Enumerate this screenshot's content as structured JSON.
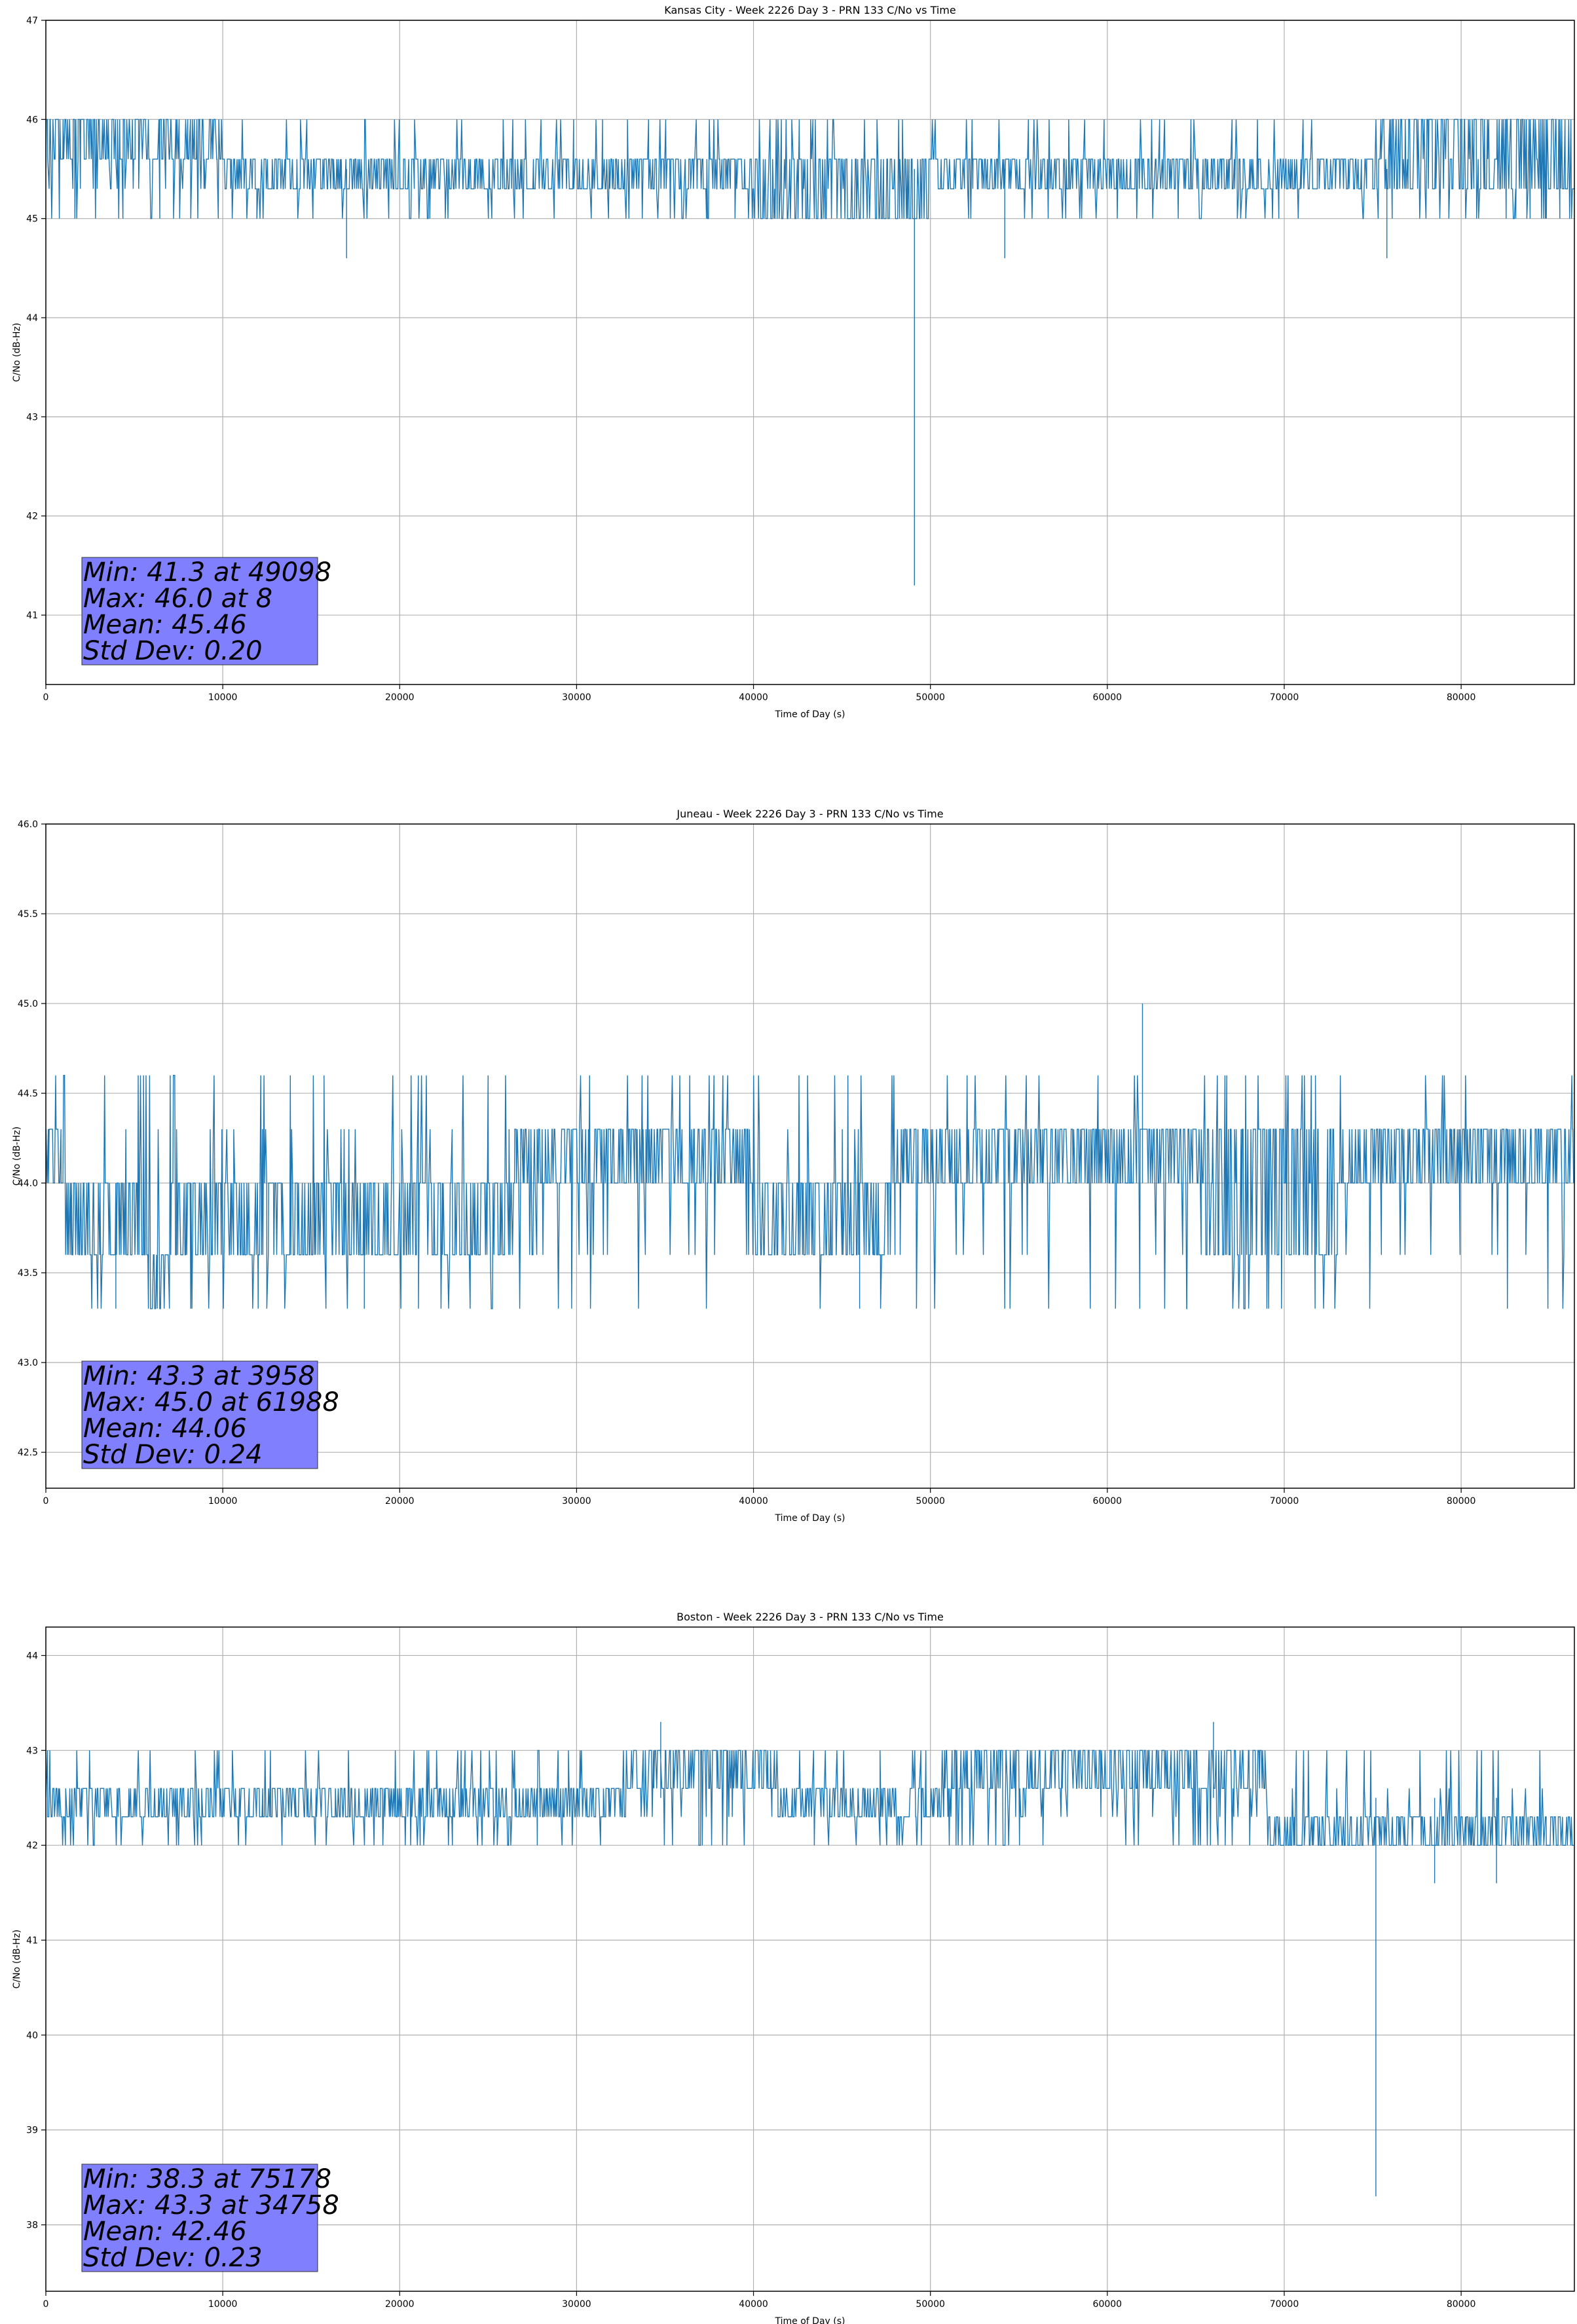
{
  "chart_data": [
    {
      "type": "line",
      "title": "Kansas City - Week 2226 Day 3 - PRN 133 C/No vs Time",
      "xlabel": "Time of Day (s)",
      "ylabel": "C/No (dB-Hz)",
      "xlim": [
        0,
        86400
      ],
      "ylim": [
        40.3,
        47.0
      ],
      "xticks": [
        0,
        10000,
        20000,
        30000,
        40000,
        50000,
        60000,
        70000,
        80000
      ],
      "yticks": [
        41,
        42,
        43,
        44,
        45,
        46,
        47
      ],
      "ytick_labels": [
        "41",
        "42",
        "43",
        "44",
        "45",
        "46",
        "47"
      ],
      "grid": true,
      "color": "#1f77b4",
      "base": 45.5,
      "band": [
        45.3,
        45.6
      ],
      "levels": [
        45.0,
        45.3,
        45.6,
        46.0
      ],
      "segments": [
        {
          "x": [
            0,
            10000
          ],
          "lo": 45.6,
          "hi": 46.0,
          "dense": 0.7
        },
        {
          "x": [
            10000,
            40000
          ],
          "lo": 45.3,
          "hi": 45.6,
          "dense": 0.8
        },
        {
          "x": [
            40000,
            50000
          ],
          "lo": 45.0,
          "hi": 45.6,
          "dense": 0.6
        },
        {
          "x": [
            50000,
            75000
          ],
          "lo": 45.3,
          "hi": 45.6,
          "dense": 0.8
        },
        {
          "x": [
            75000,
            86400
          ],
          "lo": 45.3,
          "hi": 46.0,
          "dense": 0.6
        }
      ],
      "spikes": [
        {
          "x": 17000,
          "y": 44.6
        },
        {
          "x": 49098,
          "y": 41.3
        },
        {
          "x": 54200,
          "y": 44.6
        },
        {
          "x": 75800,
          "y": 44.6
        }
      ],
      "stats": {
        "min": "Min: 41.3 at 49098",
        "max": "Max: 46.0 at 8",
        "mean": "Mean: 45.46",
        "std": "Std Dev: 0.20"
      }
    },
    {
      "type": "line",
      "title": "Juneau - Week 2226 Day 3 - PRN 133 C/No vs Time",
      "xlabel": "Time of Day (s)",
      "ylabel": "C/No (dB-Hz)",
      "xlim": [
        0,
        86400
      ],
      "ylim": [
        42.3,
        46.0
      ],
      "xticks": [
        0,
        10000,
        20000,
        30000,
        40000,
        50000,
        60000,
        70000,
        80000
      ],
      "yticks": [
        42.5,
        43.0,
        43.5,
        44.0,
        44.5,
        45.0,
        45.5,
        46.0
      ],
      "ytick_labels": [
        "42.5",
        "43.0",
        "43.5",
        "44.0",
        "44.5",
        "45.0",
        "45.5",
        "46.0"
      ],
      "grid": true,
      "color": "#1f77b4",
      "base": 44.0,
      "levels": [
        43.3,
        43.6,
        44.0,
        44.3,
        44.6
      ],
      "segments": [
        {
          "x": [
            0,
            1000
          ],
          "lo": 44.0,
          "hi": 44.3,
          "dense": 0.9
        },
        {
          "x": [
            1000,
            5500
          ],
          "lo": 43.6,
          "hi": 44.0,
          "dense": 0.8
        },
        {
          "x": [
            5500,
            7000
          ],
          "lo": 43.3,
          "hi": 43.6,
          "dense": 0.9
        },
        {
          "x": [
            7000,
            26500
          ],
          "lo": 43.6,
          "hi": 44.0,
          "dense": 0.8
        },
        {
          "x": [
            26500,
            40000
          ],
          "lo": 44.0,
          "hi": 44.3,
          "dense": 0.8
        },
        {
          "x": [
            40000,
            48000
          ],
          "lo": 43.6,
          "hi": 44.0,
          "dense": 0.85
        },
        {
          "x": [
            48000,
            65500
          ],
          "lo": 44.0,
          "hi": 44.3,
          "dense": 0.85
        },
        {
          "x": [
            65500,
            73000
          ],
          "lo": 43.6,
          "hi": 44.3,
          "dense": 0.6
        },
        {
          "x": [
            73000,
            86400
          ],
          "lo": 44.0,
          "hi": 44.3,
          "dense": 0.85
        }
      ],
      "spikes": [
        {
          "x": 3958,
          "y": 43.3
        },
        {
          "x": 18000,
          "y": 43.3
        },
        {
          "x": 46000,
          "y": 43.3
        },
        {
          "x": 61988,
          "y": 45.0
        }
      ],
      "stats": {
        "min": "Min: 43.3 at 3958",
        "max": "Max: 45.0 at 61988",
        "mean": "Mean: 44.06",
        "std": "Std Dev: 0.24"
      }
    },
    {
      "type": "line",
      "title": "Boston - Week 2226 Day 3 - PRN 133 C/No vs Time",
      "xlabel": "Time of Day (s)",
      "ylabel": "C/No (dB-Hz)",
      "xlim": [
        0,
        86400
      ],
      "ylim": [
        37.3,
        44.3
      ],
      "xticks": [
        0,
        10000,
        20000,
        30000,
        40000,
        50000,
        60000,
        70000,
        80000
      ],
      "yticks": [
        38,
        39,
        40,
        41,
        42,
        43,
        44
      ],
      "ytick_labels": [
        "38",
        "39",
        "40",
        "41",
        "42",
        "43",
        "44"
      ],
      "grid": true,
      "color": "#1f77b4",
      "base": 42.5,
      "levels": [
        42.0,
        42.3,
        42.6,
        43.0
      ],
      "segments": [
        {
          "x": [
            0,
            33000
          ],
          "lo": 42.3,
          "hi": 42.6,
          "dense": 0.8
        },
        {
          "x": [
            33000,
            41000
          ],
          "lo": 42.6,
          "hi": 43.0,
          "dense": 0.8
        },
        {
          "x": [
            41000,
            51000
          ],
          "lo": 42.3,
          "hi": 42.6,
          "dense": 0.8
        },
        {
          "x": [
            51000,
            69000
          ],
          "lo": 42.6,
          "hi": 43.0,
          "dense": 0.75
        },
        {
          "x": [
            69000,
            86400
          ],
          "lo": 42.0,
          "hi": 42.3,
          "dense": 0.8
        }
      ],
      "spikes": [
        {
          "x": 34758,
          "y": 43.3
        },
        {
          "x": 66000,
          "y": 43.3
        },
        {
          "x": 75178,
          "y": 38.3
        },
        {
          "x": 78500,
          "y": 41.6
        },
        {
          "x": 82000,
          "y": 41.6
        }
      ],
      "stats": {
        "min": "Min: 38.3 at 75178",
        "max": "Max: 43.3 at 34758",
        "mean": "Mean: 42.46",
        "std": "Std Dev: 0.23"
      }
    }
  ]
}
